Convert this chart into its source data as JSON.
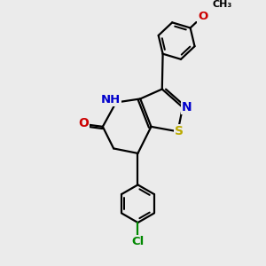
{
  "bg_color": "#ebebeb",
  "atom_colors": {
    "C": "#000000",
    "N": "#0000cc",
    "O": "#cc0000",
    "S": "#bbaa00",
    "Cl": "#008800",
    "H": "#444444"
  },
  "bond_color": "#000000",
  "bond_width": 1.6,
  "font_size": 9.5
}
